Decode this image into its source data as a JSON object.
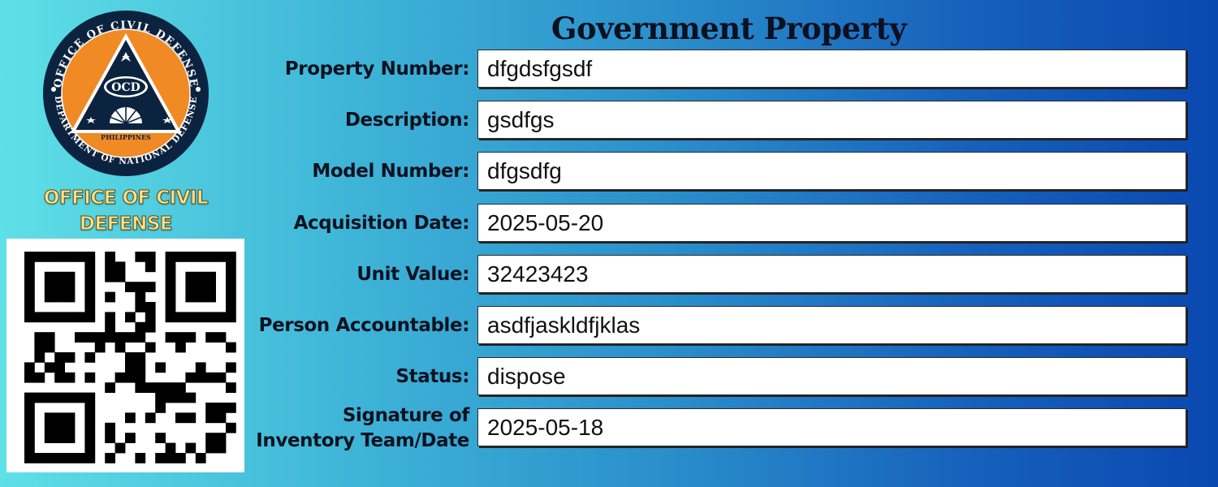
{
  "card": {
    "title": "Government Property",
    "org_name": "OFFICE OF CIVIL DEFENSE"
  },
  "seal": {
    "icon": "ocd-seal-logo",
    "top_text": "OFFICE OF CIVIL DEFENSE",
    "bottom_text": "DEPARTMENT OF NATIONAL DEFENSE",
    "center_text": "OCD",
    "country": "PHILIPPINES",
    "colors": {
      "ring": "#0c2340",
      "fill": "#f08a24",
      "text": "#ffffff"
    }
  },
  "qr": {
    "icon": "qr-code"
  },
  "fields": [
    {
      "label": "Property Number:",
      "value": "dfgdsfgsdf"
    },
    {
      "label": "Description:",
      "value": "gsdfgs"
    },
    {
      "label": "Model Number:",
      "value": "dfgsdfg"
    },
    {
      "label": "Acquisition Date:",
      "value": "2025-05-20"
    },
    {
      "label": "Unit Value:",
      "value": "32423423"
    },
    {
      "label": "Person Accountable:",
      "value": "asdfjaskldfjklas"
    },
    {
      "label": "Status:",
      "value": "dispose"
    },
    {
      "label": "Signature of Inventory Team/Date",
      "value": "2025-05-18"
    }
  ]
}
